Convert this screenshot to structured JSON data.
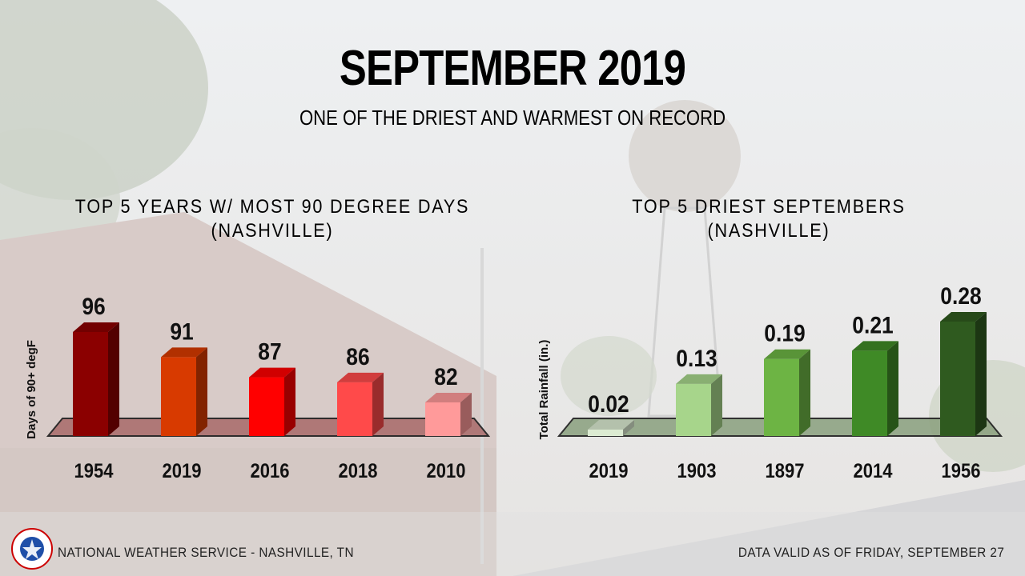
{
  "header": {
    "title": "SEPTEMBER 2019",
    "subtitle": "ONE OF THE DRIEST AND WARMEST ON RECORD"
  },
  "footer": {
    "left": "NATIONAL WEATHER SERVICE - NASHVILLE, TN",
    "right": "DATA VALID AS OF FRIDAY, SEPTEMBER 27",
    "logo_text": "NATIONAL WEATHER SERVICE"
  },
  "chart_data": [
    {
      "type": "bar",
      "title": "TOP 5 YEARS W/ MOST 90 DEGREE DAYS",
      "subtitle": "(NASHVILLE)",
      "ylabel": "Days of 90+ degF",
      "categories": [
        "1954",
        "2019",
        "2016",
        "2018",
        "2010"
      ],
      "values": [
        96,
        91,
        87,
        86,
        82
      ],
      "value_labels": [
        "96",
        "91",
        "87",
        "86",
        "82"
      ],
      "colors": [
        "#8b0000",
        "#d83a00",
        "#ff0000",
        "#ff4a4a",
        "#ff9a9a"
      ],
      "grid": false
    },
    {
      "type": "bar",
      "title": "TOP 5 DRIEST SEPTEMBERS",
      "subtitle": "(NASHVILLE)",
      "ylabel": "Total Rainfall (in.)",
      "categories": [
        "2019",
        "1903",
        "1897",
        "2014",
        "1956"
      ],
      "values": [
        0.02,
        0.13,
        0.19,
        0.21,
        0.28
      ],
      "value_labels": [
        "0.02",
        "0.13",
        "0.19",
        "0.21",
        "0.28"
      ],
      "colors": [
        "#dcebd2",
        "#a7d58b",
        "#6db444",
        "#3f8a26",
        "#2f5a1f"
      ],
      "grid": false
    }
  ]
}
